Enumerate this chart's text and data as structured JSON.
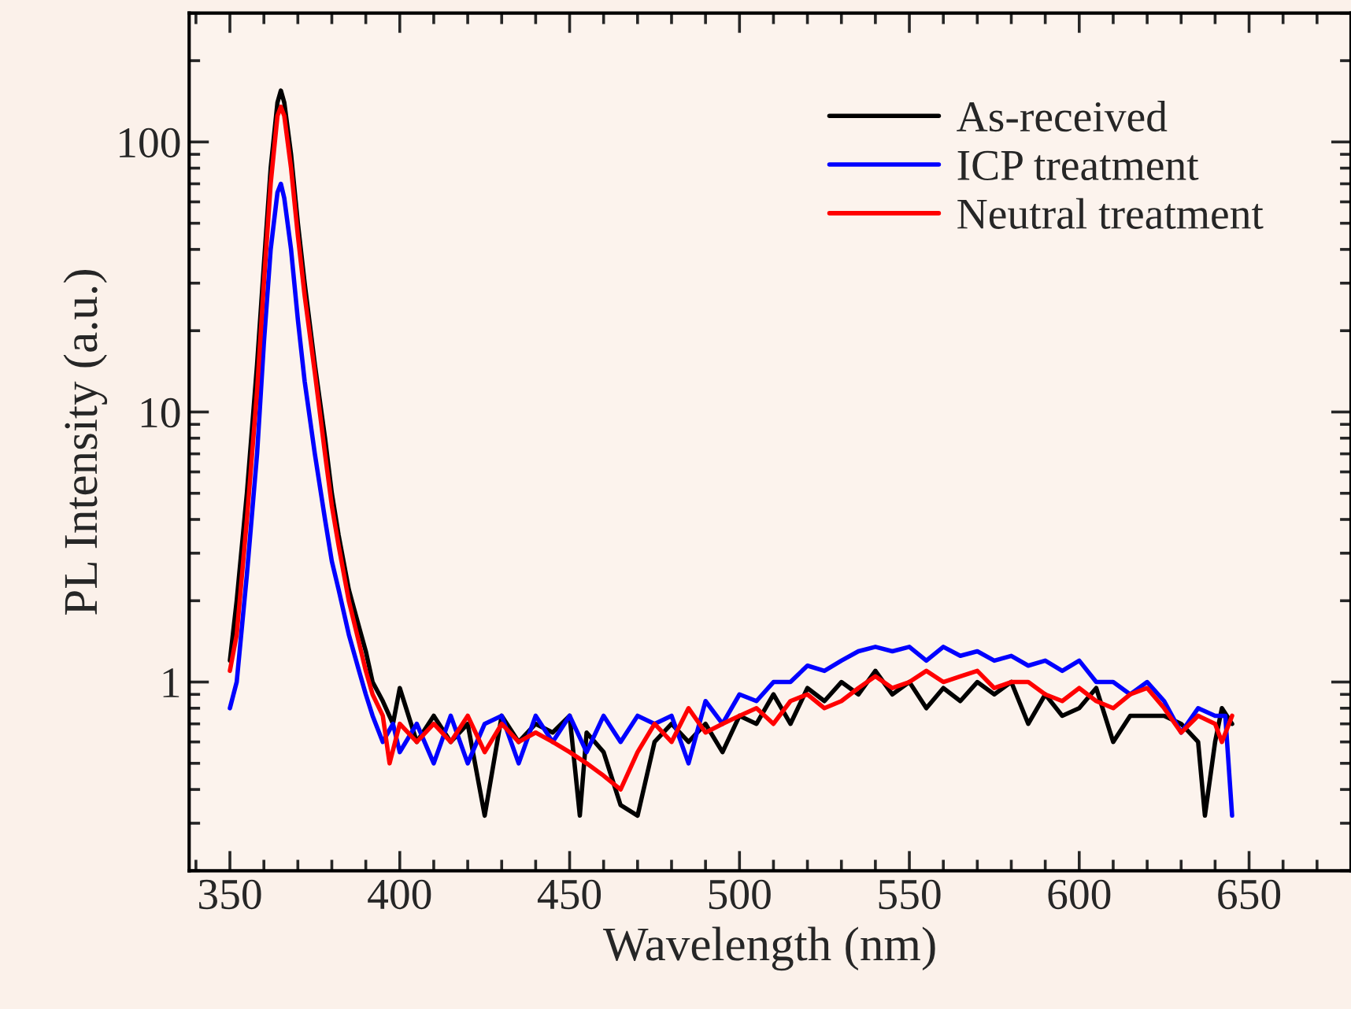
{
  "chart_data": {
    "type": "line",
    "xlabel": "Wavelength (nm)",
    "ylabel": "PL Intensity (a.u.)",
    "xlim": [
      338,
      680
    ],
    "xticks": [
      350,
      400,
      450,
      500,
      550,
      600,
      650
    ],
    "ylim": [
      0.2,
      300
    ],
    "yticks": [
      1,
      10,
      100
    ],
    "log": "y",
    "grid": false,
    "legend": "top right",
    "line_style": "solid",
    "marker": "none",
    "series": [
      {
        "name": "As-received",
        "color": "#000000",
        "x": [
          350,
          352,
          355,
          358,
          360,
          362,
          364,
          365,
          366,
          368,
          370,
          372,
          375,
          378,
          380,
          382,
          385,
          388,
          390,
          392,
          395,
          398,
          400,
          405,
          410,
          415,
          420,
          425,
          430,
          435,
          440,
          445,
          450,
          453,
          455,
          460,
          465,
          470,
          475,
          480,
          485,
          490,
          495,
          500,
          505,
          510,
          515,
          520,
          525,
          530,
          535,
          540,
          545,
          550,
          555,
          560,
          565,
          570,
          575,
          580,
          585,
          590,
          595,
          600,
          605,
          610,
          615,
          620,
          625,
          630,
          635,
          637,
          640,
          642,
          645
        ],
        "values": [
          1.2,
          2.0,
          5,
          15,
          35,
          80,
          140,
          155,
          140,
          90,
          50,
          30,
          15,
          8,
          5,
          3.5,
          2.2,
          1.6,
          1.3,
          1.0,
          0.85,
          0.7,
          0.95,
          0.6,
          0.75,
          0.6,
          0.7,
          0.32,
          0.75,
          0.6,
          0.7,
          0.65,
          0.75,
          0.32,
          0.65,
          0.55,
          0.35,
          0.32,
          0.6,
          0.7,
          0.6,
          0.7,
          0.55,
          0.75,
          0.7,
          0.9,
          0.7,
          0.95,
          0.85,
          1.0,
          0.9,
          1.1,
          0.9,
          1.0,
          0.8,
          0.95,
          0.85,
          1.0,
          0.9,
          1.0,
          0.7,
          0.9,
          0.75,
          0.8,
          0.95,
          0.6,
          0.75,
          0.75,
          0.75,
          0.7,
          0.6,
          0.32,
          0.6,
          0.8,
          0.7
        ]
      },
      {
        "name": "ICP treatment",
        "color": "#0000ff",
        "x": [
          350,
          352,
          355,
          358,
          360,
          362,
          364,
          365,
          366,
          368,
          370,
          372,
          375,
          378,
          380,
          382,
          385,
          388,
          390,
          392,
          395,
          398,
          400,
          405,
          410,
          415,
          420,
          425,
          430,
          435,
          440,
          445,
          450,
          455,
          460,
          465,
          470,
          475,
          480,
          485,
          490,
          495,
          500,
          505,
          510,
          515,
          520,
          525,
          530,
          535,
          540,
          545,
          550,
          555,
          560,
          565,
          570,
          575,
          580,
          585,
          590,
          595,
          600,
          605,
          610,
          615,
          620,
          625,
          630,
          635,
          640,
          643,
          645
        ],
        "values": [
          0.8,
          1.0,
          2.5,
          7,
          18,
          40,
          65,
          70,
          62,
          40,
          22,
          13,
          7,
          4,
          2.8,
          2.2,
          1.5,
          1.1,
          0.9,
          0.75,
          0.6,
          0.7,
          0.55,
          0.7,
          0.5,
          0.75,
          0.5,
          0.7,
          0.75,
          0.5,
          0.75,
          0.6,
          0.75,
          0.55,
          0.75,
          0.6,
          0.75,
          0.7,
          0.75,
          0.5,
          0.85,
          0.7,
          0.9,
          0.85,
          1.0,
          1.0,
          1.15,
          1.1,
          1.2,
          1.3,
          1.35,
          1.3,
          1.35,
          1.2,
          1.35,
          1.25,
          1.3,
          1.2,
          1.25,
          1.15,
          1.2,
          1.1,
          1.2,
          1.0,
          1.0,
          0.9,
          1.0,
          0.85,
          0.65,
          0.8,
          0.75,
          0.75,
          0.32
        ]
      },
      {
        "name": "Neutral treatment",
        "color": "#ff0000",
        "x": [
          350,
          352,
          355,
          358,
          360,
          362,
          364,
          365,
          366,
          368,
          370,
          372,
          375,
          378,
          380,
          382,
          385,
          388,
          390,
          392,
          395,
          397,
          400,
          405,
          410,
          415,
          420,
          425,
          430,
          435,
          440,
          445,
          450,
          455,
          460,
          465,
          470,
          475,
          480,
          485,
          490,
          495,
          500,
          505,
          510,
          515,
          520,
          525,
          530,
          535,
          540,
          545,
          550,
          555,
          560,
          565,
          570,
          575,
          580,
          585,
          590,
          595,
          600,
          605,
          610,
          615,
          620,
          625,
          630,
          635,
          640,
          642,
          645
        ],
        "values": [
          1.1,
          1.5,
          4,
          12,
          30,
          70,
          125,
          135,
          125,
          80,
          45,
          27,
          14,
          7,
          4.5,
          3.2,
          2,
          1.4,
          1.1,
          0.9,
          0.75,
          0.5,
          0.7,
          0.6,
          0.7,
          0.6,
          0.75,
          0.55,
          0.7,
          0.6,
          0.65,
          0.6,
          0.55,
          0.5,
          0.45,
          0.4,
          0.55,
          0.7,
          0.6,
          0.8,
          0.65,
          0.7,
          0.75,
          0.8,
          0.7,
          0.85,
          0.9,
          0.8,
          0.85,
          0.95,
          1.05,
          0.95,
          1.0,
          1.1,
          1.0,
          1.05,
          1.1,
          0.95,
          1.0,
          1.0,
          0.9,
          0.85,
          0.95,
          0.85,
          0.8,
          0.9,
          0.95,
          0.8,
          0.65,
          0.75,
          0.7,
          0.6,
          0.75
        ]
      }
    ]
  }
}
